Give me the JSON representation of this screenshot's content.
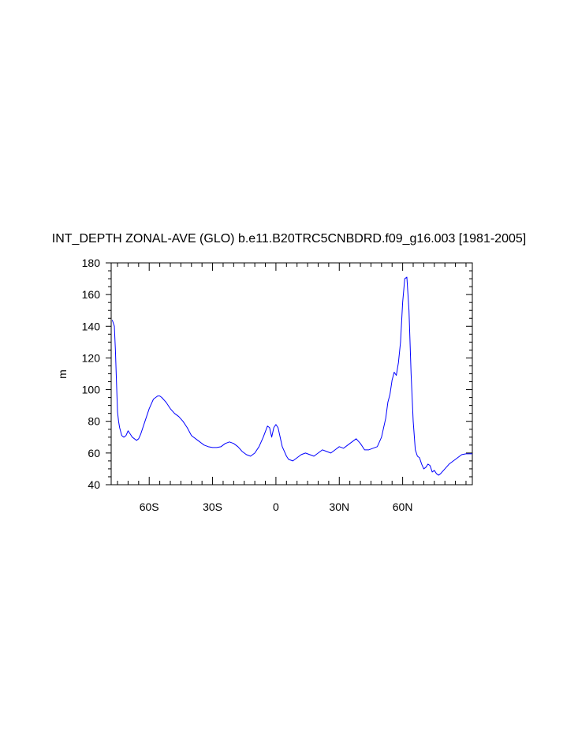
{
  "chart_data": {
    "type": "line",
    "title": "INT_DEPTH ZONAL-AVE (GLO) b.e11.B20TRC5CNBDRD.f09_g16.003 [1981-2005]",
    "xlabel": "",
    "ylabel": "m",
    "xlim": [
      -78,
      93
    ],
    "ylim": [
      40,
      180
    ],
    "x_ticks": [
      -60,
      -30,
      0,
      30,
      60
    ],
    "x_tick_labels": [
      "60S",
      "30S",
      "0",
      "30N",
      "60N"
    ],
    "y_ticks": [
      40,
      60,
      80,
      100,
      120,
      140,
      160,
      180
    ],
    "y_tick_labels": [
      "40",
      "60",
      "80",
      "100",
      "120",
      "140",
      "160",
      "180"
    ],
    "grid": false,
    "series": [
      {
        "color": "#0000ff",
        "x": [
          -77.5,
          -76.5,
          -76,
          -75.5,
          -75,
          -74.5,
          -74,
          -73,
          -72,
          -71,
          -70,
          -69,
          -68,
          -67,
          -66,
          -65,
          -64,
          -62,
          -60,
          -58,
          -56,
          -55,
          -54,
          -52,
          -50,
          -48,
          -46,
          -44,
          -42,
          -40,
          -38,
          -36,
          -34,
          -32,
          -30,
          -28,
          -26,
          -24,
          -22,
          -20,
          -18,
          -16,
          -14,
          -12,
          -10,
          -8,
          -6,
          -4,
          -3,
          -2,
          -1,
          0,
          1,
          2,
          3,
          4,
          5,
          6,
          8,
          10,
          12,
          14,
          16,
          18,
          20,
          22,
          24,
          26,
          28,
          30,
          32,
          34,
          36,
          38,
          40,
          42,
          44,
          46,
          48,
          50,
          52,
          53,
          54,
          55,
          56,
          57,
          58,
          59,
          60,
          61,
          62,
          63,
          64,
          65,
          66,
          67,
          68,
          69,
          70,
          71,
          72,
          73,
          74,
          75,
          76,
          77,
          78,
          80,
          82,
          84,
          86,
          88,
          90,
          92,
          93
        ],
        "values": [
          144,
          140,
          125,
          105,
          86,
          80,
          76,
          71,
          70,
          71,
          74,
          72,
          70,
          69,
          68,
          69,
          72,
          80,
          88,
          94,
          96,
          96,
          95,
          92,
          88,
          85,
          83,
          80,
          76,
          71,
          69,
          67,
          65,
          64,
          63.5,
          63.5,
          64,
          66,
          67,
          66,
          64,
          61,
          59,
          58,
          60,
          64,
          70,
          77,
          76,
          70,
          76,
          78,
          76,
          70,
          64,
          61,
          58,
          56,
          55,
          57,
          59,
          60,
          59,
          58,
          60,
          62,
          61,
          60,
          62,
          64,
          63,
          65,
          67,
          69,
          66,
          62,
          62,
          63,
          64,
          70,
          82,
          92,
          97,
          106,
          111,
          109,
          117,
          130,
          155,
          170,
          171,
          150,
          110,
          80,
          62,
          58,
          57,
          53,
          50,
          51,
          53,
          52,
          48,
          49,
          47,
          46,
          47,
          50,
          53,
          55,
          57,
          59,
          59.5,
          59.5,
          59.5
        ]
      }
    ]
  }
}
